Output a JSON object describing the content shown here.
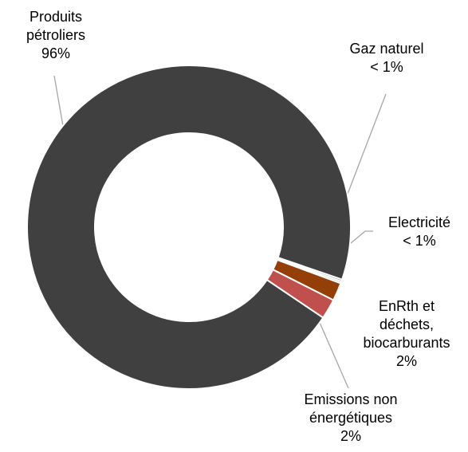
{
  "chart_data": {
    "type": "donut",
    "categories": [
      "Produits pétroliers",
      "Gaz naturel",
      "Electricité",
      "EnRth et déchets, biocarburants",
      "Emissions non énergétiques"
    ],
    "values": [
      95.8,
      0.2,
      0.2,
      1.8,
      2.0
    ],
    "value_labels": [
      "96%",
      "< 1%",
      "< 1%",
      "2%",
      "2%"
    ],
    "colors": [
      "#404040",
      "#7f7f7f",
      "#bfbfbf",
      "#953f08",
      "#c0504d"
    ]
  }
}
